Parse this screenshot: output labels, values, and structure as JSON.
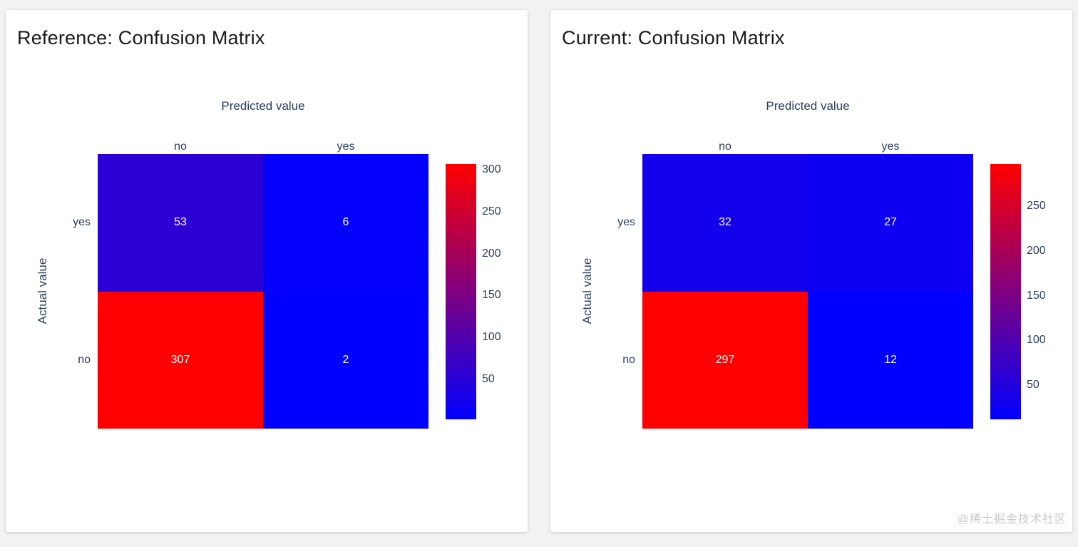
{
  "page": {
    "background": "#f2f2f2",
    "watermark": "@稀土掘金技术社区",
    "label_color": "#2a3f5f",
    "cell_text_color": "#ffffff"
  },
  "chart_data": [
    {
      "type": "heatmap",
      "panel_title": "Reference: Confusion Matrix",
      "xlabel": "Predicted value",
      "ylabel": "Actual value",
      "x_categories": [
        "no",
        "yes"
      ],
      "y_categories": [
        "yes",
        "no"
      ],
      "values": [
        [
          53,
          6
        ],
        [
          307,
          2
        ]
      ],
      "zmin": 2,
      "zmax": 307,
      "colorscale": {
        "name": "bluered",
        "low": "#0000ff",
        "high": "#ff0000"
      },
      "colorbar_ticks": [
        300,
        250,
        200,
        150,
        100,
        50
      ],
      "legend_position": "right",
      "grid": false
    },
    {
      "type": "heatmap",
      "panel_title": "Current: Confusion Matrix",
      "xlabel": "Predicted value",
      "ylabel": "Actual value",
      "x_categories": [
        "no",
        "yes"
      ],
      "y_categories": [
        "yes",
        "no"
      ],
      "values": [
        [
          32,
          27
        ],
        [
          297,
          12
        ]
      ],
      "zmin": 12,
      "zmax": 297,
      "colorscale": {
        "name": "bluered",
        "low": "#0000ff",
        "high": "#ff0000"
      },
      "colorbar_ticks": [
        250,
        200,
        150,
        100,
        50
      ],
      "legend_position": "right",
      "grid": false
    }
  ]
}
